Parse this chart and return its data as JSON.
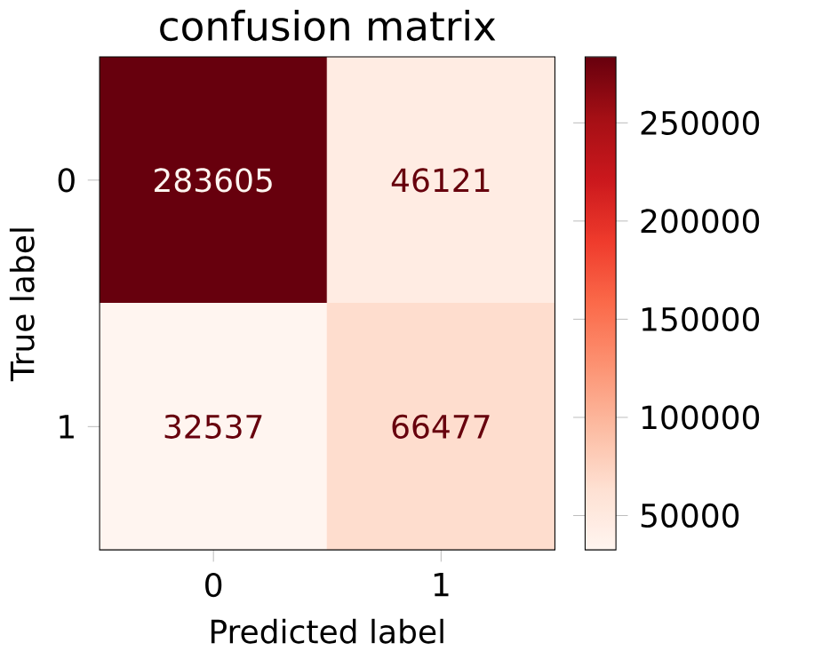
{
  "chart_data": {
    "type": "heatmap",
    "title": "confusion matrix",
    "xlabel": "Predicted label",
    "ylabel": "True label",
    "categories": [
      "0",
      "1"
    ],
    "y_categories": [
      "0",
      "1"
    ],
    "cells": [
      [
        283605,
        46121
      ],
      [
        32537,
        66477
      ]
    ],
    "data_labels": true,
    "clim": [
      32537,
      283605
    ],
    "cticks": [
      50000,
      100000,
      150000,
      200000,
      250000
    ]
  }
}
